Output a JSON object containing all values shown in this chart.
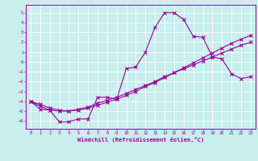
{
  "xlabel": "Windchill (Refroidissement éolien,°C)",
  "bg_color": "#c8eeee",
  "line_color": "#990099",
  "grid_color": "#ffffff",
  "xlim": [
    -0.5,
    23.5
  ],
  "ylim": [
    -6.8,
    5.8
  ],
  "xticks": [
    0,
    1,
    2,
    3,
    4,
    5,
    6,
    7,
    8,
    9,
    10,
    11,
    12,
    13,
    14,
    15,
    16,
    17,
    18,
    19,
    20,
    21,
    22,
    23
  ],
  "yticks": [
    -6,
    -5,
    -4,
    -3,
    -2,
    -1,
    0,
    1,
    2,
    3,
    4,
    5
  ],
  "line1_x": [
    0,
    1,
    2,
    3,
    4,
    5,
    6,
    7,
    8,
    9,
    10,
    11,
    12,
    13,
    14,
    15,
    16,
    17,
    18,
    19,
    20,
    21,
    22,
    23
  ],
  "line1_y": [
    -4.0,
    -4.8,
    -4.9,
    -6.1,
    -6.1,
    -5.8,
    -5.8,
    -3.6,
    -3.6,
    -3.8,
    -0.7,
    -0.5,
    1.0,
    3.5,
    5.0,
    5.0,
    4.3,
    2.6,
    2.5,
    0.5,
    0.3,
    -1.2,
    -1.7,
    -1.5
  ],
  "line2_x": [
    0,
    1,
    2,
    3,
    4,
    5,
    6,
    7,
    8,
    9,
    10,
    11,
    12,
    13,
    14,
    15,
    16,
    17,
    18,
    19,
    20,
    21,
    22,
    23
  ],
  "line2_y": [
    -4.0,
    -4.5,
    -4.9,
    -5.0,
    -5.0,
    -4.8,
    -4.6,
    -4.2,
    -3.9,
    -3.6,
    -3.2,
    -2.8,
    -2.4,
    -2.0,
    -1.5,
    -1.1,
    -0.7,
    -0.3,
    0.1,
    0.5,
    0.9,
    1.3,
    1.7,
    2.0
  ],
  "line3_x": [
    0,
    1,
    2,
    3,
    4,
    5,
    6,
    7,
    8,
    9,
    10,
    11,
    12,
    13,
    14,
    15,
    16,
    17,
    18,
    19,
    20,
    21,
    22,
    23
  ],
  "line3_y": [
    -4.0,
    -4.3,
    -4.7,
    -4.9,
    -5.0,
    -4.9,
    -4.7,
    -4.4,
    -4.1,
    -3.8,
    -3.4,
    -3.0,
    -2.5,
    -2.1,
    -1.6,
    -1.1,
    -0.6,
    -0.1,
    0.4,
    0.9,
    1.4,
    1.9,
    2.3,
    2.7
  ]
}
